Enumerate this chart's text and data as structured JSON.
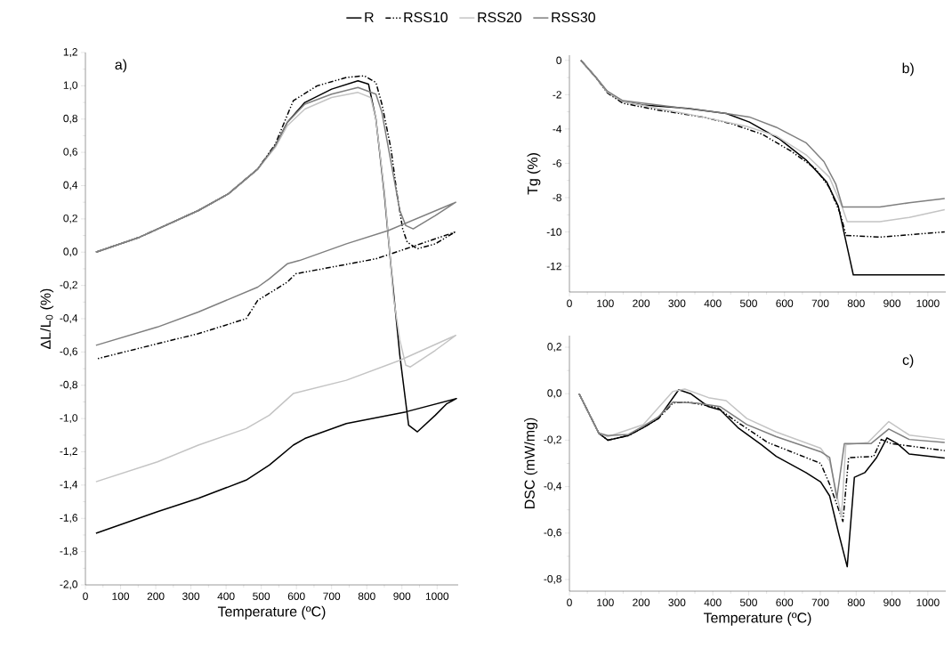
{
  "chart_data": [
    {
      "type": "line",
      "xlabel": "Temperature (ºC)",
      "ylabel": "ΔL/L$_{0}$ (%)",
      "annotations": [
        "a)"
      ],
      "legend": "top",
      "xlim": [
        0,
        1060
      ],
      "ylim": [
        -2.0,
        1.2
      ],
      "xticks": [
        0,
        100,
        200,
        300,
        400,
        500,
        600,
        700,
        800,
        900,
        1000
      ],
      "yticks": [
        {
          "value": -2.0,
          "label": "-2,0"
        },
        {
          "value": -1.8,
          "label": "-1,8"
        },
        {
          "value": -1.6,
          "label": "-1,6"
        },
        {
          "value": -1.4,
          "label": "-1,4"
        },
        {
          "value": -1.2,
          "label": "-1,2"
        },
        {
          "value": -1.0,
          "label": "-1,0"
        },
        {
          "value": -0.8,
          "label": "-0,8"
        },
        {
          "value": -0.6,
          "label": "-0,6"
        },
        {
          "value": -0.4,
          "label": "-0,4"
        },
        {
          "value": -0.2,
          "label": "-0,2"
        },
        {
          "value": 0.0,
          "label": "0,0"
        },
        {
          "value": 0.2,
          "label": "0,2"
        },
        {
          "value": 0.4,
          "label": "0,4"
        },
        {
          "value": 0.6,
          "label": "0,6"
        },
        {
          "value": 0.8,
          "label": "0,8"
        },
        {
          "value": 1.0,
          "label": "1,0"
        },
        {
          "value": 1.2,
          "label": "1,2"
        }
      ],
      "series": [
        {
          "name": "R",
          "color": "#000000",
          "line_style": "solid",
          "x": [
            30,
            154,
            321,
            406,
            490,
            540,
            574,
            624,
            700,
            775,
            805,
            826,
            850,
            869,
            894,
            919,
            944,
            995,
            1028,
            1055,
            911,
            742,
            624,
            591,
            523,
            457,
            321,
            205,
            30
          ],
          "values": [
            0,
            0.09,
            0.25,
            0.35,
            0.5,
            0.64,
            0.78,
            0.9,
            0.98,
            1.03,
            1.01,
            0.8,
            0.35,
            -0.09,
            -0.62,
            -1.04,
            -1.08,
            -0.98,
            -0.91,
            -0.88,
            -0.96,
            -1.03,
            -1.12,
            -1.16,
            -1.28,
            -1.37,
            -1.48,
            -1.56,
            -1.69
          ]
        },
        {
          "name": "RSS10",
          "color": "#000000",
          "line_style": "dashed",
          "x": [
            30,
            154,
            321,
            406,
            490,
            540,
            591,
            659,
            742,
            793,
            826,
            843,
            869,
            886,
            902,
            915,
            944,
            995,
            1050,
            911,
            826,
            700,
            598,
            574,
            490,
            457,
            321,
            205,
            35
          ],
          "values": [
            0,
            0.09,
            0.25,
            0.35,
            0.5,
            0.65,
            0.91,
            1.0,
            1.05,
            1.06,
            1.02,
            0.89,
            0.62,
            0.35,
            0.14,
            0.06,
            0.02,
            0.05,
            0.12,
            0.02,
            -0.04,
            -0.09,
            -0.13,
            -0.18,
            -0.29,
            -0.4,
            -0.49,
            -0.55,
            -0.64
          ]
        },
        {
          "name": "RSS20",
          "color": "#c4c4c4",
          "line_style": "solid",
          "x": [
            30,
            154,
            321,
            406,
            490,
            540,
            574,
            624,
            700,
            775,
            811,
            826,
            851,
            876,
            894,
            911,
            924,
            995,
            1053,
            894,
            742,
            591,
            523,
            457,
            321,
            205,
            30
          ],
          "values": [
            0,
            0.09,
            0.25,
            0.35,
            0.5,
            0.63,
            0.76,
            0.86,
            0.93,
            0.96,
            0.93,
            0.8,
            0.35,
            -0.27,
            -0.53,
            -0.68,
            -0.69,
            -0.59,
            -0.5,
            -0.65,
            -0.77,
            -0.85,
            -0.98,
            -1.06,
            -1.16,
            -1.26,
            -1.38
          ]
        },
        {
          "name": "RSS30",
          "color": "#7f7f7f",
          "line_style": "solid",
          "x": [
            30,
            154,
            321,
            406,
            490,
            540,
            574,
            624,
            700,
            775,
            826,
            843,
            869,
            894,
            911,
            932,
            995,
            1053,
            861,
            742,
            609,
            574,
            523,
            490,
            321,
            205,
            30
          ],
          "values": [
            0,
            0.09,
            0.25,
            0.35,
            0.5,
            0.64,
            0.78,
            0.89,
            0.95,
            0.99,
            0.95,
            0.84,
            0.54,
            0.25,
            0.16,
            0.14,
            0.22,
            0.3,
            0.13,
            0.05,
            -0.05,
            -0.07,
            -0.16,
            -0.21,
            -0.36,
            -0.45,
            -0.56
          ]
        }
      ]
    },
    {
      "type": "line",
      "ylabel": "Tg (%)",
      "annotations": [
        "b)"
      ],
      "xlim": [
        0,
        1050
      ],
      "ylim": [
        -13.5,
        0.3
      ],
      "xticks": [
        0,
        100,
        200,
        300,
        400,
        500,
        600,
        700,
        800,
        900,
        1000
      ],
      "yticks": [
        -12,
        -10,
        -8,
        -6,
        -4,
        -2,
        0
      ],
      "series": [
        {
          "color": "#000000",
          "line_style": "solid",
          "x": [
            32,
            74,
            106,
            149,
            206,
            330,
            438,
            502,
            587,
            660,
            718,
            750,
            772,
            792,
            1047
          ],
          "values": [
            0,
            -1,
            -1.85,
            -2.4,
            -2.6,
            -2.8,
            -3.1,
            -3.6,
            -4.6,
            -5.8,
            -7.1,
            -8.5,
            -10.6,
            -12.5,
            -12.5
          ]
        },
        {
          "color": "#000000",
          "line_style": "dashed",
          "x": [
            32,
            74,
            106,
            149,
            248,
            371,
            453,
            537,
            619,
            686,
            725,
            755,
            772,
            866,
            1047
          ],
          "values": [
            0,
            -1,
            -1.9,
            -2.5,
            -2.9,
            -3.3,
            -3.7,
            -4.3,
            -5.3,
            -6.3,
            -7.4,
            -8.9,
            -10.2,
            -10.3,
            -10
          ]
        },
        {
          "color": "#c4c4c4",
          "line_style": "solid",
          "x": [
            32,
            74,
            106,
            149,
            248,
            371,
            495,
            577,
            660,
            725,
            760,
            775,
            866,
            948,
            1047
          ],
          "values": [
            0,
            -1,
            -1.85,
            -2.4,
            -2.8,
            -3.3,
            -3.85,
            -4.4,
            -5.5,
            -6.8,
            -8.5,
            -9.4,
            -9.4,
            -9.15,
            -8.7
          ]
        },
        {
          "color": "#7f7f7f",
          "line_style": "solid",
          "x": [
            32,
            74,
            106,
            149,
            248,
            438,
            502,
            577,
            660,
            710,
            743,
            762,
            866,
            948,
            1047
          ],
          "values": [
            0,
            -1,
            -1.8,
            -2.35,
            -2.6,
            -3.1,
            -3.3,
            -3.9,
            -4.8,
            -5.9,
            -7.2,
            -8.55,
            -8.55,
            -8.3,
            -8.05
          ]
        }
      ]
    },
    {
      "type": "line",
      "xlabel": "Temperature (ºC)",
      "ylabel": "DSC (mW/mg)",
      "annotations": [
        "c)"
      ],
      "xlim": [
        0,
        1050
      ],
      "ylim": [
        -0.85,
        0.25
      ],
      "xticks": [
        0,
        100,
        200,
        300,
        400,
        500,
        600,
        700,
        800,
        900,
        1000
      ],
      "yticks": [
        {
          "value": -0.8,
          "label": "-0,8"
        },
        {
          "value": -0.6,
          "label": "-0,6"
        },
        {
          "value": -0.4,
          "label": "-0,4"
        },
        {
          "value": -0.2,
          "label": "-0,2"
        },
        {
          "value": 0.0,
          "label": "0,0"
        },
        {
          "value": 0.2,
          "label": "0,2"
        }
      ],
      "series": [
        {
          "color": "#000000",
          "line_style": "solid",
          "x": [
            27,
            82,
            107,
            165,
            206,
            248,
            297,
            305,
            338,
            388,
            421,
            470,
            536,
            577,
            660,
            701,
            726,
            751,
            775,
            795,
            824,
            857,
            886,
            915,
            948,
            1047
          ],
          "values": [
            0,
            -0.17,
            -0.2,
            -0.18,
            -0.146,
            -0.107,
            0.0,
            0.017,
            0.0,
            -0.056,
            -0.07,
            -0.146,
            -0.22,
            -0.27,
            -0.34,
            -0.38,
            -0.44,
            -0.6,
            -0.745,
            -0.36,
            -0.34,
            -0.275,
            -0.19,
            -0.215,
            -0.26,
            -0.277
          ]
        },
        {
          "color": "#000000",
          "line_style": "dashed",
          "x": [
            27,
            82,
            107,
            165,
            206,
            248,
            289,
            330,
            413,
            454,
            553,
            619,
            701,
            726,
            763,
            779,
            849,
            870,
            898,
            1047
          ],
          "values": [
            0,
            -0.17,
            -0.2,
            -0.18,
            -0.146,
            -0.107,
            -0.04,
            -0.036,
            -0.06,
            -0.107,
            -0.21,
            -0.25,
            -0.3,
            -0.39,
            -0.55,
            -0.275,
            -0.27,
            -0.197,
            -0.215,
            -0.245
          ]
        },
        {
          "color": "#c4c4c4",
          "line_style": "solid",
          "x": [
            27,
            82,
            107,
            206,
            289,
            322,
            388,
            437,
            495,
            577,
            701,
            726,
            759,
            771,
            833,
            891,
            948,
            1047
          ],
          "values": [
            0,
            -0.17,
            -0.185,
            -0.133,
            0.01,
            0.02,
            -0.017,
            -0.03,
            -0.107,
            -0.165,
            -0.235,
            -0.29,
            -0.53,
            -0.22,
            -0.21,
            -0.12,
            -0.178,
            -0.197
          ]
        },
        {
          "color": "#7f7f7f",
          "line_style": "solid",
          "x": [
            27,
            82,
            107,
            165,
            206,
            248,
            289,
            355,
            421,
            495,
            577,
            701,
            726,
            746,
            767,
            841,
            891,
            948,
            1047
          ],
          "values": [
            0,
            -0.17,
            -0.18,
            -0.175,
            -0.14,
            -0.1,
            -0.036,
            -0.04,
            -0.056,
            -0.133,
            -0.185,
            -0.25,
            -0.275,
            -0.45,
            -0.215,
            -0.215,
            -0.152,
            -0.197,
            -0.21
          ]
        }
      ]
    }
  ]
}
